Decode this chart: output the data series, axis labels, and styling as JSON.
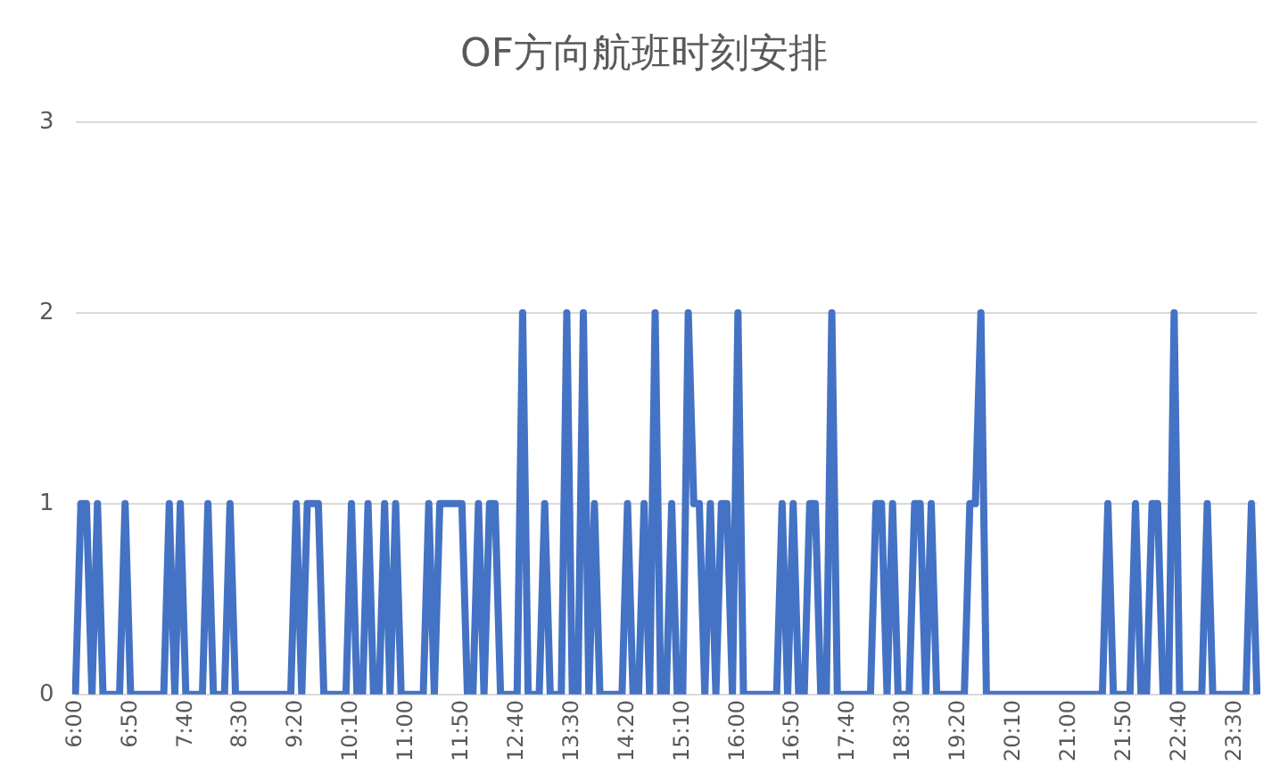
{
  "chart_data": {
    "type": "line",
    "title": "OF方向航班时刻安排",
    "categories": [
      "6:00",
      null,
      null,
      null,
      null,
      null,
      null,
      null,
      null,
      null,
      "6:50",
      null,
      null,
      null,
      null,
      null,
      null,
      null,
      null,
      null,
      "7:40",
      null,
      null,
      null,
      null,
      null,
      null,
      null,
      null,
      null,
      "8:30",
      null,
      null,
      null,
      null,
      null,
      null,
      null,
      null,
      null,
      "9:20",
      null,
      null,
      null,
      null,
      null,
      null,
      null,
      null,
      null,
      "10:10",
      null,
      null,
      null,
      null,
      null,
      null,
      null,
      null,
      null,
      "11:00",
      null,
      null,
      null,
      null,
      null,
      null,
      null,
      null,
      null,
      "11:50",
      null,
      null,
      null,
      null,
      null,
      null,
      null,
      null,
      null,
      "12:40",
      null,
      null,
      null,
      null,
      null,
      null,
      null,
      null,
      null,
      "13:30",
      null,
      null,
      null,
      null,
      null,
      null,
      null,
      null,
      null,
      "14:20",
      null,
      null,
      null,
      null,
      null,
      null,
      null,
      null,
      null,
      "15:10",
      null,
      null,
      null,
      null,
      null,
      null,
      null,
      null,
      null,
      "16:00",
      null,
      null,
      null,
      null,
      null,
      null,
      null,
      null,
      null,
      "16:50",
      null,
      null,
      null,
      null,
      null,
      null,
      null,
      null,
      null,
      "17:40",
      null,
      null,
      null,
      null,
      null,
      null,
      null,
      null,
      null,
      "18:30",
      null,
      null,
      null,
      null,
      null,
      null,
      null,
      null,
      null,
      "19:20",
      null,
      null,
      null,
      null,
      null,
      null,
      null,
      null,
      null,
      "20:10",
      null,
      null,
      null,
      null,
      null,
      null,
      null,
      null,
      null,
      "21:00",
      null,
      null,
      null,
      null,
      null,
      null,
      null,
      null,
      null,
      "21:50",
      null,
      null,
      null,
      null,
      null,
      null,
      null,
      null,
      null,
      "22:40",
      null,
      null,
      null,
      null,
      null,
      null,
      null,
      null,
      null,
      "23:30",
      null,
      null,
      null,
      null
    ],
    "values": [
      0,
      1,
      1,
      0,
      1,
      0,
      0,
      0,
      0,
      1,
      0,
      0,
      0,
      0,
      0,
      0,
      0,
      1,
      0,
      1,
      0,
      0,
      0,
      0,
      1,
      0,
      0,
      0,
      1,
      0,
      0,
      0,
      0,
      0,
      0,
      0,
      0,
      0,
      0,
      0,
      1,
      0,
      1,
      1,
      1,
      0,
      0,
      0,
      0,
      0,
      1,
      0,
      0,
      1,
      0,
      0,
      1,
      0,
      1,
      0,
      0,
      0,
      0,
      0,
      1,
      0,
      1,
      1,
      1,
      1,
      1,
      0,
      0,
      1,
      0,
      1,
      1,
      0,
      0,
      0,
      0,
      2,
      0,
      0,
      0,
      1,
      0,
      0,
      0,
      2,
      0,
      0,
      2,
      0,
      1,
      0,
      0,
      0,
      0,
      0,
      1,
      0,
      0,
      1,
      0,
      2,
      0,
      0,
      1,
      0,
      0,
      2,
      1,
      1,
      0,
      1,
      0,
      1,
      1,
      0,
      2,
      0,
      0,
      0,
      0,
      0,
      0,
      0,
      1,
      0,
      1,
      0,
      0,
      1,
      1,
      0,
      0,
      2,
      0,
      0,
      0,
      0,
      0,
      0,
      0,
      1,
      1,
      0,
      1,
      0,
      0,
      0,
      1,
      1,
      0,
      1,
      0,
      0,
      0,
      0,
      0,
      0,
      1,
      1,
      2,
      0,
      0,
      0,
      0,
      0,
      0,
      0,
      0,
      0,
      0,
      0,
      0,
      0,
      0,
      0,
      0,
      0,
      0,
      0,
      0,
      0,
      0,
      1,
      0,
      0,
      0,
      0,
      1,
      0,
      0,
      1,
      1,
      0,
      0,
      2,
      0,
      0,
      0,
      0,
      0,
      1,
      0,
      0,
      0,
      0,
      0,
      0,
      0,
      1,
      0
    ],
    "color": "#4472c4",
    "ylim": [
      0,
      3
    ],
    "yticks": [
      0,
      1,
      2,
      3
    ],
    "grid": "y"
  }
}
